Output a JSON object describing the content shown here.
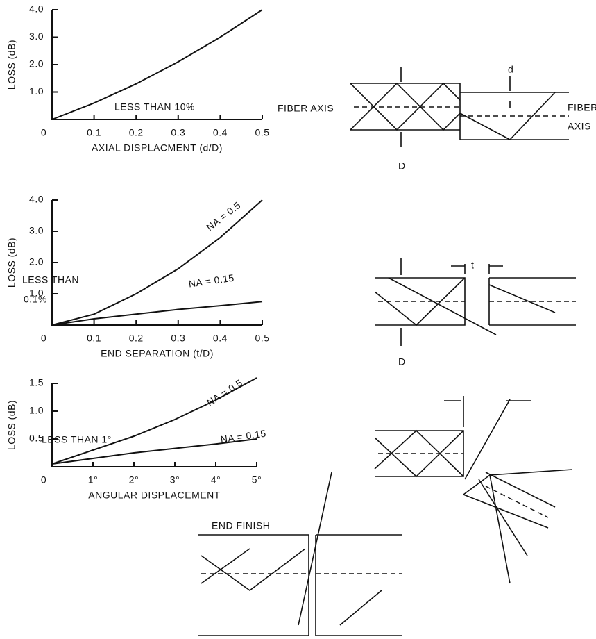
{
  "chart_data": [
    {
      "type": "line",
      "ylabel": "LOSS (dB)",
      "xlabel": "AXIAL DISPLACMENT (d/D)",
      "annotations": [
        "LESS THAN 10%"
      ],
      "x": [
        0,
        0.1,
        0.2,
        0.3,
        0.4,
        0.5
      ],
      "series": [
        {
          "name": null,
          "color": "#111111",
          "values": [
            0,
            0.6,
            1.3,
            2.1,
            3.0,
            4.0
          ]
        }
      ],
      "xlim": [
        0,
        0.5
      ],
      "ylim": [
        0,
        4
      ],
      "xticks": [
        0,
        0.1,
        0.2,
        0.3,
        0.4,
        0.5
      ],
      "yticks": [
        {
          "value": 1,
          "label": "1.0"
        },
        {
          "value": 2,
          "label": "2.0"
        },
        {
          "value": 3,
          "label": "3.0"
        },
        {
          "value": 4,
          "label": "4.0"
        }
      ]
    },
    {
      "type": "line",
      "ylabel": "LOSS (dB)",
      "xlabel": "END SEPARATION (t/D)",
      "annotations": [
        "LESS THAN",
        "0.1%"
      ],
      "x": [
        0,
        0.1,
        0.2,
        0.3,
        0.4,
        0.5
      ],
      "series": [
        {
          "name": "NA = 0.5",
          "color": "#111111",
          "values": [
            0,
            0.35,
            1.0,
            1.8,
            2.8,
            4.0
          ]
        },
        {
          "name": "NA = 0.15",
          "color": "#111111",
          "values": [
            0,
            0.2,
            0.35,
            0.5,
            0.62,
            0.75
          ]
        }
      ],
      "xlim": [
        0,
        0.5
      ],
      "ylim": [
        0,
        4
      ],
      "xticks": [
        0,
        0.1,
        0.2,
        0.3,
        0.4,
        0.5
      ],
      "yticks": [
        {
          "value": 1,
          "label": "1.0"
        },
        {
          "value": 2,
          "label": "2.0"
        },
        {
          "value": 3,
          "label": "3.0"
        },
        {
          "value": 4,
          "label": "4.0"
        }
      ]
    },
    {
      "type": "line",
      "ylabel": "LOSS (dB)",
      "xlabel": "ANGULAR DISPLACEMENT",
      "annotations": [
        "LESS THAN 1°"
      ],
      "x": [
        0,
        1,
        2,
        3,
        4,
        5
      ],
      "series": [
        {
          "name": "NA = 0.5",
          "color": "#111111",
          "values": [
            0.05,
            0.3,
            0.55,
            0.85,
            1.2,
            1.6
          ]
        },
        {
          "name": "NA = 0.15",
          "color": "#111111",
          "values": [
            0.05,
            0.15,
            0.25,
            0.33,
            0.41,
            0.5
          ]
        }
      ],
      "xlim": [
        0,
        5
      ],
      "ylim": [
        0,
        1.5
      ],
      "xticks": [
        0,
        {
          "value": 1,
          "label": "1°"
        },
        {
          "value": 2,
          "label": "2°"
        },
        {
          "value": 3,
          "label": "3°"
        },
        {
          "value": 4,
          "label": "4°"
        },
        {
          "value": 5,
          "label": "5°"
        }
      ],
      "yticks": [
        0.5,
        {
          "value": 1,
          "label": "1.0"
        },
        1.5
      ]
    }
  ],
  "diagrams": {
    "fiber_axis_left": "FIBER AXIS",
    "fiber_axis_right": [
      "FIBER",
      "AXIS"
    ],
    "d": "d",
    "D1": "D",
    "t": "t",
    "D2": "D",
    "end_finish": "END FINISH"
  }
}
